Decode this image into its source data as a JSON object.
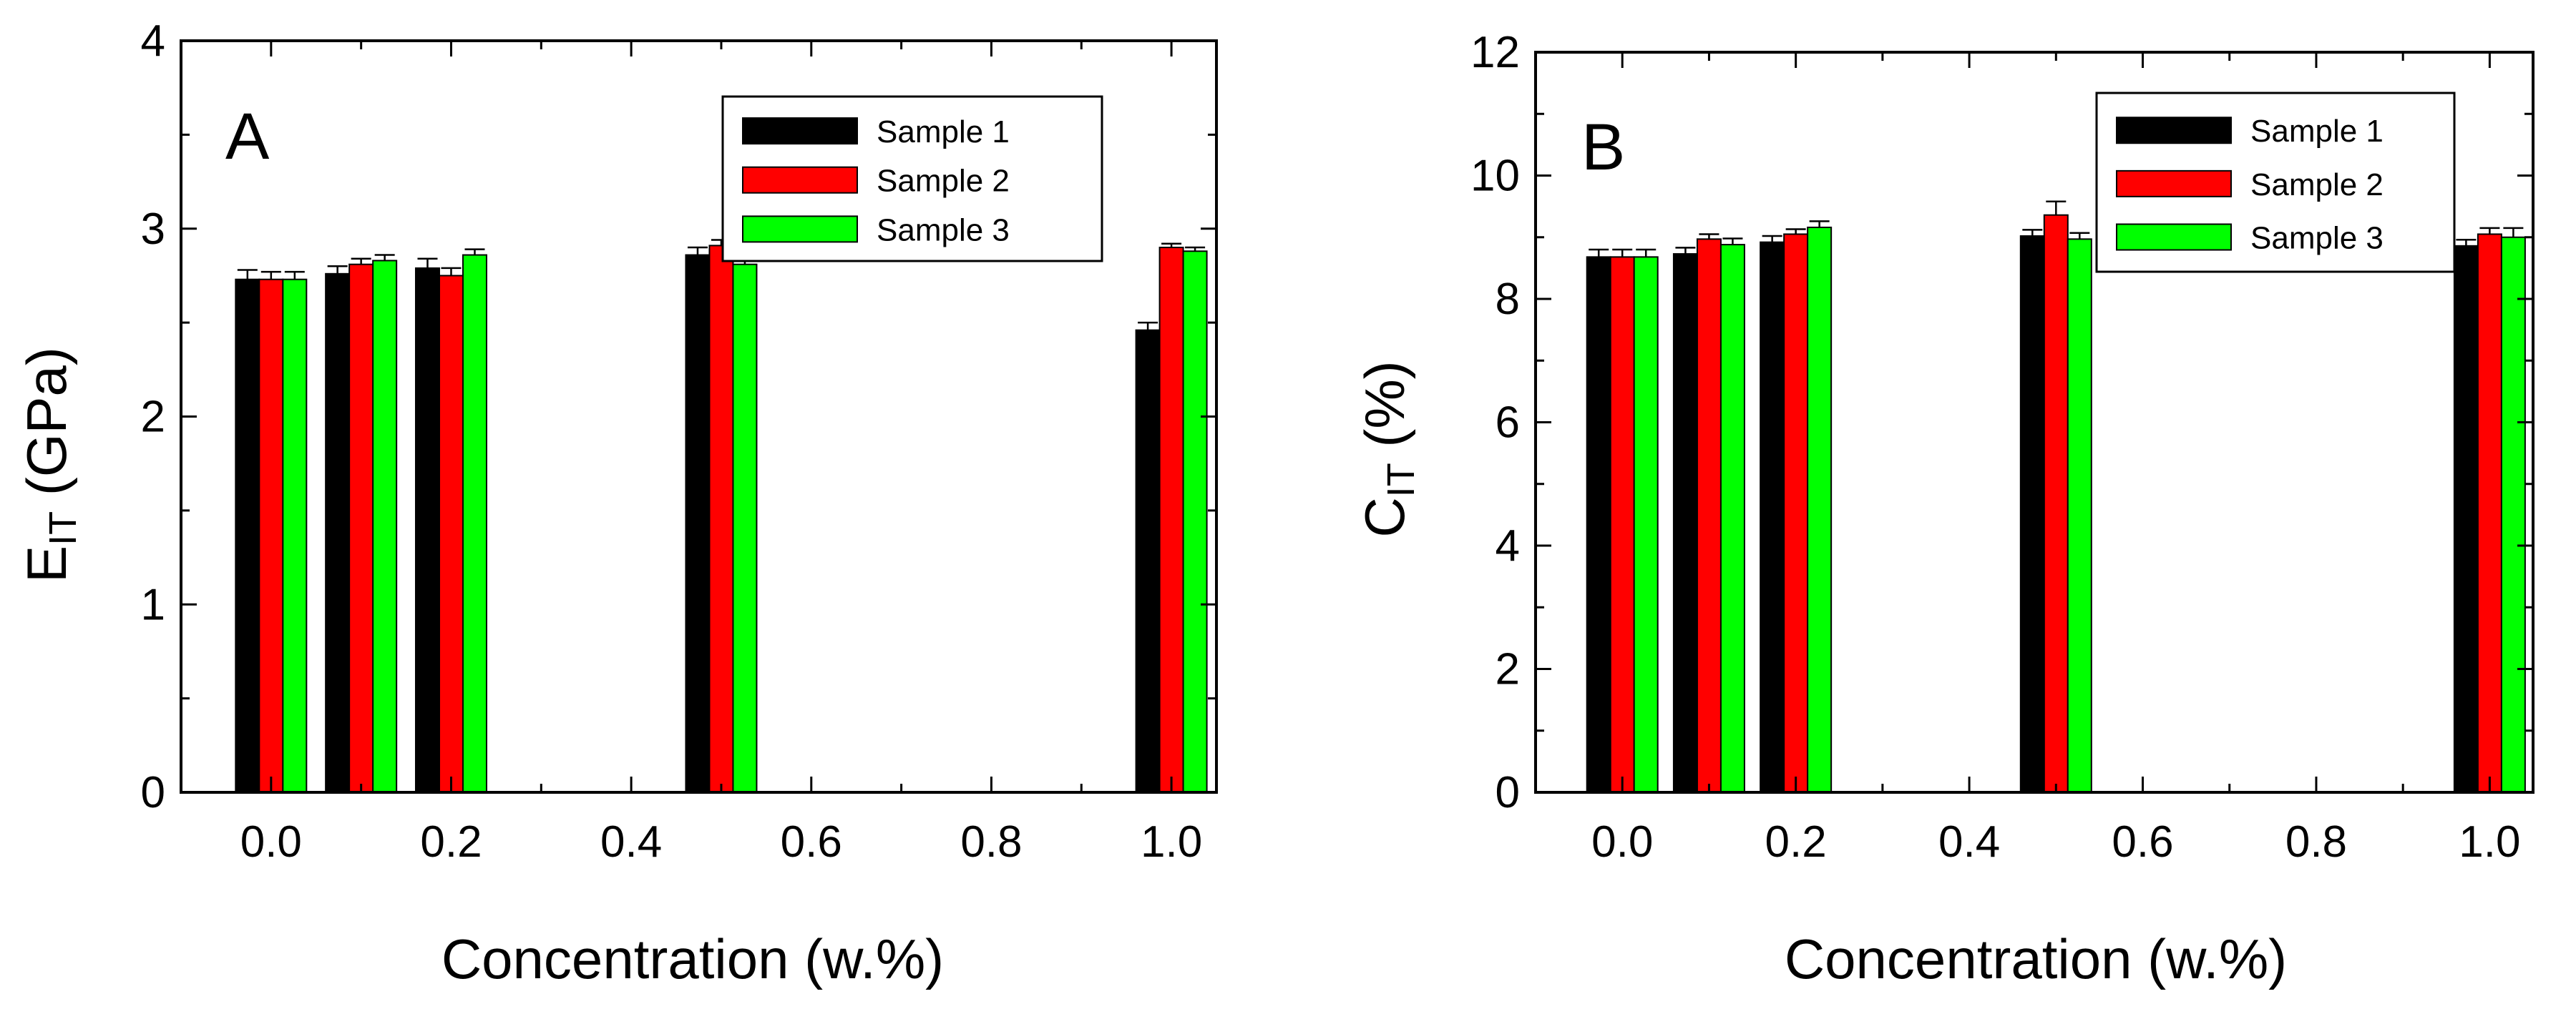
{
  "chart_data": [
    {
      "type": "bar",
      "panel_label": "A",
      "ylabel_main": "E",
      "ylabel_sub": "IT",
      "ylabel_unit": " (GPa)",
      "xlabel": "Concentration (w.%)",
      "xlim": [
        -0.1,
        1.05
      ],
      "ylim": [
        0,
        4
      ],
      "xticks": [
        "0.0",
        "0.2",
        "0.4",
        "0.6",
        "0.8",
        "1.0"
      ],
      "yticks": [
        "0",
        "1",
        "2",
        "3",
        "4"
      ],
      "x": [
        0.0,
        0.1,
        0.2,
        0.5,
        1.0
      ],
      "legend_position": "top-right",
      "series": [
        {
          "name": "Sample 1",
          "color": "#000000",
          "values": [
            2.73,
            2.76,
            2.79,
            2.86,
            2.46
          ],
          "errors": [
            0.05,
            0.04,
            0.05,
            0.04,
            0.04
          ]
        },
        {
          "name": "Sample 2",
          "color": "#ff0000",
          "values": [
            2.73,
            2.81,
            2.75,
            2.91,
            2.9
          ],
          "errors": [
            0.04,
            0.03,
            0.04,
            0.03,
            0.02
          ]
        },
        {
          "name": "Sample 3",
          "color": "#00ff00",
          "values": [
            2.73,
            2.83,
            2.86,
            2.81,
            2.88
          ],
          "errors": [
            0.04,
            0.03,
            0.03,
            0.04,
            0.02
          ]
        }
      ]
    },
    {
      "type": "bar",
      "panel_label": "B",
      "ylabel_main": "C",
      "ylabel_sub": "IT",
      "ylabel_unit": " (%)",
      "xlabel": "Concentration (w.%)",
      "xlim": [
        -0.1,
        1.05
      ],
      "ylim": [
        0,
        12
      ],
      "xticks": [
        "0.0",
        "0.2",
        "0.4",
        "0.6",
        "0.8",
        "1.0"
      ],
      "yticks": [
        "0",
        "2",
        "4",
        "6",
        "8",
        "10",
        "12"
      ],
      "x": [
        0.0,
        0.1,
        0.2,
        0.5,
        1.0
      ],
      "legend_position": "top-right",
      "series": [
        {
          "name": "Sample 1",
          "color": "#000000",
          "values": [
            8.68,
            8.73,
            8.92,
            9.02,
            8.86
          ],
          "errors": [
            0.12,
            0.1,
            0.1,
            0.1,
            0.1
          ]
        },
        {
          "name": "Sample 2",
          "color": "#ff0000",
          "values": [
            8.68,
            8.97,
            9.05,
            9.36,
            9.05
          ],
          "errors": [
            0.12,
            0.08,
            0.08,
            0.22,
            0.1
          ]
        },
        {
          "name": "Sample 3",
          "color": "#00ff00",
          "values": [
            8.68,
            8.88,
            9.16,
            8.97,
            9.0
          ],
          "errors": [
            0.12,
            0.1,
            0.1,
            0.1,
            0.15
          ]
        }
      ]
    }
  ]
}
